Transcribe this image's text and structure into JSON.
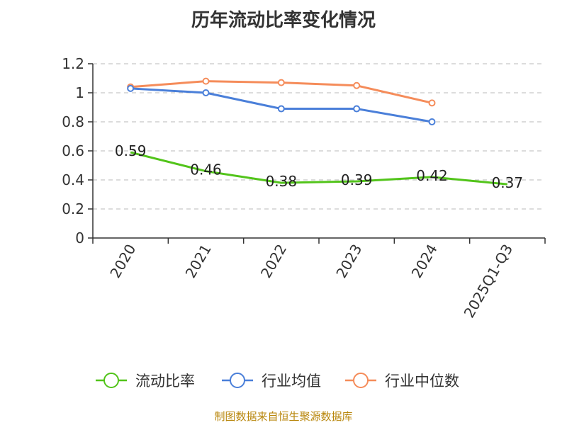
{
  "chart_data": {
    "type": "line",
    "title": "历年流动比率变化情况",
    "categories": [
      "2020",
      "2021",
      "2022",
      "2023",
      "2024",
      "2025Q1-Q3"
    ],
    "ylim": [
      0,
      1.2
    ],
    "yticks": [
      "0",
      "0.2",
      "0.4",
      "0.6",
      "0.8",
      "1",
      "1.2"
    ],
    "ytick_values": [
      0,
      0.2,
      0.4,
      0.6,
      0.8,
      1.0,
      1.2
    ],
    "grid": true,
    "legend_position": "bottom",
    "series": [
      {
        "name": "流动比率",
        "color": "#52c41a",
        "values": [
          0.59,
          0.46,
          0.38,
          0.39,
          0.42,
          0.37
        ],
        "labels": [
          "0.59",
          "0.46",
          "0.38",
          "0.39",
          "0.42",
          "0.37"
        ],
        "show_markers": false
      },
      {
        "name": "行业均值",
        "color": "#4a7fd9",
        "values": [
          1.03,
          1.0,
          0.89,
          0.89,
          0.8,
          null
        ],
        "show_markers": true
      },
      {
        "name": "行业中位数",
        "color": "#f58c5a",
        "values": [
          1.04,
          1.08,
          1.07,
          1.05,
          0.93,
          null
        ],
        "show_markers": true
      }
    ]
  },
  "source": "制图数据来自恒生聚源数据库"
}
